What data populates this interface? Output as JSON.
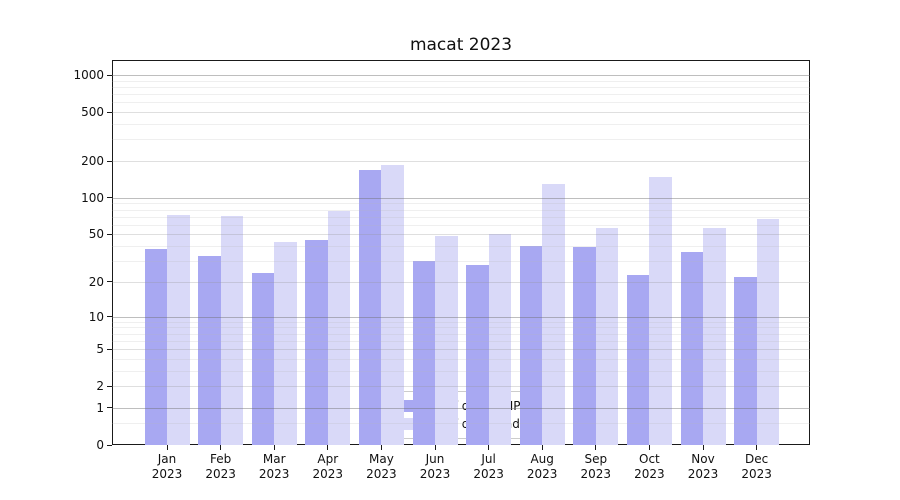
{
  "chart_data": {
    "type": "bar",
    "title": "macat 2023",
    "categories": [
      "Jan",
      "Feb",
      "Mar",
      "Apr",
      "May",
      "Jun",
      "Jul",
      "Aug",
      "Sep",
      "Oct",
      "Nov",
      "Dec"
    ],
    "category_year": "2023",
    "series": [
      {
        "name": "Nb of distinct IPs",
        "color": "#a8a8f2",
        "values": [
          38,
          33,
          24,
          45,
          170,
          30,
          28,
          40,
          39,
          23,
          36,
          22
        ]
      },
      {
        "name": "Nb of downloads",
        "color": "#d9d9f8",
        "values": [
          72,
          71,
          43,
          78,
          187,
          49,
          50,
          130,
          57,
          148,
          57,
          67
        ]
      }
    ],
    "xlabel": "",
    "ylabel": "",
    "y_scale": "log10(1+value)",
    "y_ticks": [
      0,
      1,
      2,
      5,
      10,
      20,
      50,
      100,
      200,
      500,
      1000
    ],
    "ylim": [
      0,
      1326
    ],
    "grid": "on",
    "legend_position": "lower center",
    "colors": {
      "grid_major": "rgba(110,110,110,0.45)",
      "grid_mid": "rgba(150,150,150,0.30)",
      "grid_minor": "rgba(180,180,180,0.22)",
      "spine": "#1a1a1a",
      "text": "#111111"
    }
  }
}
